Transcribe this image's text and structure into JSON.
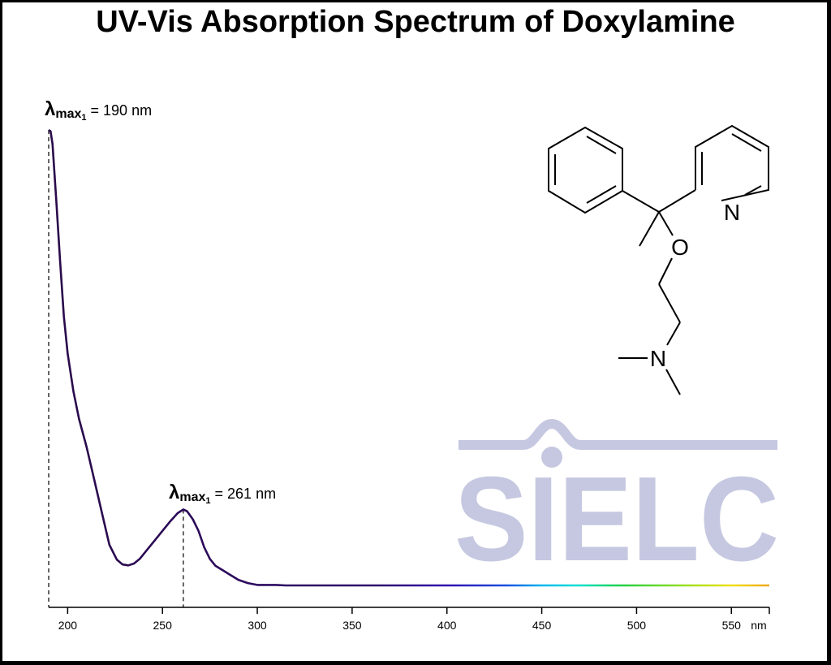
{
  "chart_data": {
    "type": "line",
    "title": "UV-Vis Absorption Spectrum of Doxylamine",
    "xlabel": "nm",
    "ylabel": "",
    "xlim": [
      190,
      570
    ],
    "ylim": [
      0,
      1
    ],
    "x_ticks": [
      200,
      250,
      300,
      350,
      400,
      450,
      500,
      550
    ],
    "y_axis_shown": false,
    "grid": false,
    "line_colors": "spectral gradient (violet to yellow) along wavelength",
    "series": [
      {
        "x": [
          190,
          191,
          192,
          194,
          196,
          198,
          200,
          203,
          206,
          210,
          214,
          218,
          222,
          226,
          229,
          232,
          235,
          238,
          242,
          246,
          250,
          254,
          258,
          261,
          263,
          266,
          269,
          272,
          275,
          278,
          282,
          286,
          290,
          295,
          300,
          305,
          310,
          315,
          320,
          350,
          400,
          450,
          500,
          550,
          570
        ],
        "y": [
          1.0,
          0.997,
          0.97,
          0.85,
          0.72,
          0.6,
          0.52,
          0.44,
          0.38,
          0.32,
          0.25,
          0.18,
          0.11,
          0.078,
          0.068,
          0.066,
          0.07,
          0.08,
          0.1,
          0.12,
          0.14,
          0.16,
          0.178,
          0.186,
          0.182,
          0.165,
          0.14,
          0.105,
          0.08,
          0.065,
          0.055,
          0.045,
          0.035,
          0.028,
          0.024,
          0.024,
          0.024,
          0.023,
          0.023,
          0.023,
          0.023,
          0.023,
          0.023,
          0.023,
          0.023
        ]
      }
    ],
    "annotations": [
      {
        "lambda": "λ",
        "sub": "max",
        "subsub": "1",
        "value_text": "= 190 nm",
        "x": 190
      },
      {
        "lambda": "λ",
        "sub": "max",
        "subsub": "1",
        "value_text": "= 261 nm",
        "x": 261
      }
    ]
  },
  "molecule": {
    "atom_N_ring": "N",
    "atom_O": "O",
    "atom_N_amine": "N"
  },
  "watermark": {
    "text": "SIELC",
    "color": "#c5c8e0"
  }
}
